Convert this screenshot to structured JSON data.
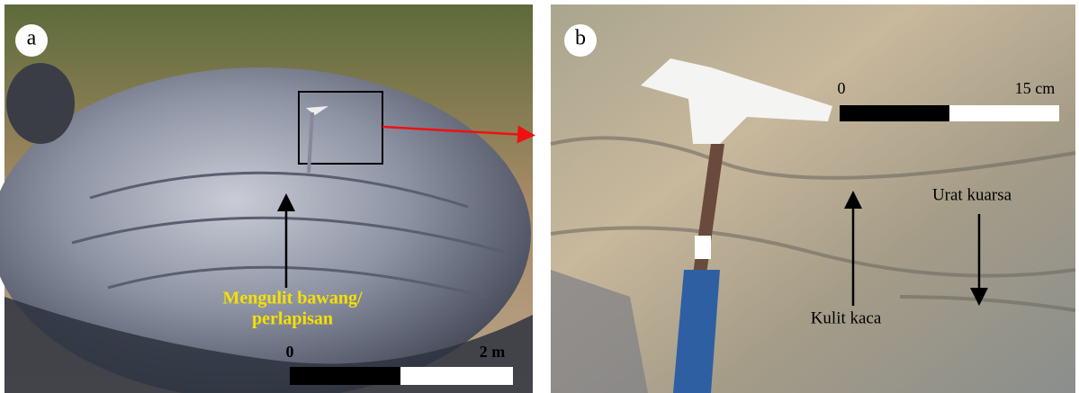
{
  "panels": [
    {
      "label": "a",
      "annotations": [
        "Mengulit bawang/",
        "perlapisan"
      ],
      "scale": {
        "start": "0",
        "end": "2 m"
      }
    },
    {
      "label": "b",
      "annotations": [
        "Urat kuarsa",
        "Kulit kaca"
      ],
      "scale": {
        "start": "0",
        "end": "15 cm"
      }
    }
  ]
}
